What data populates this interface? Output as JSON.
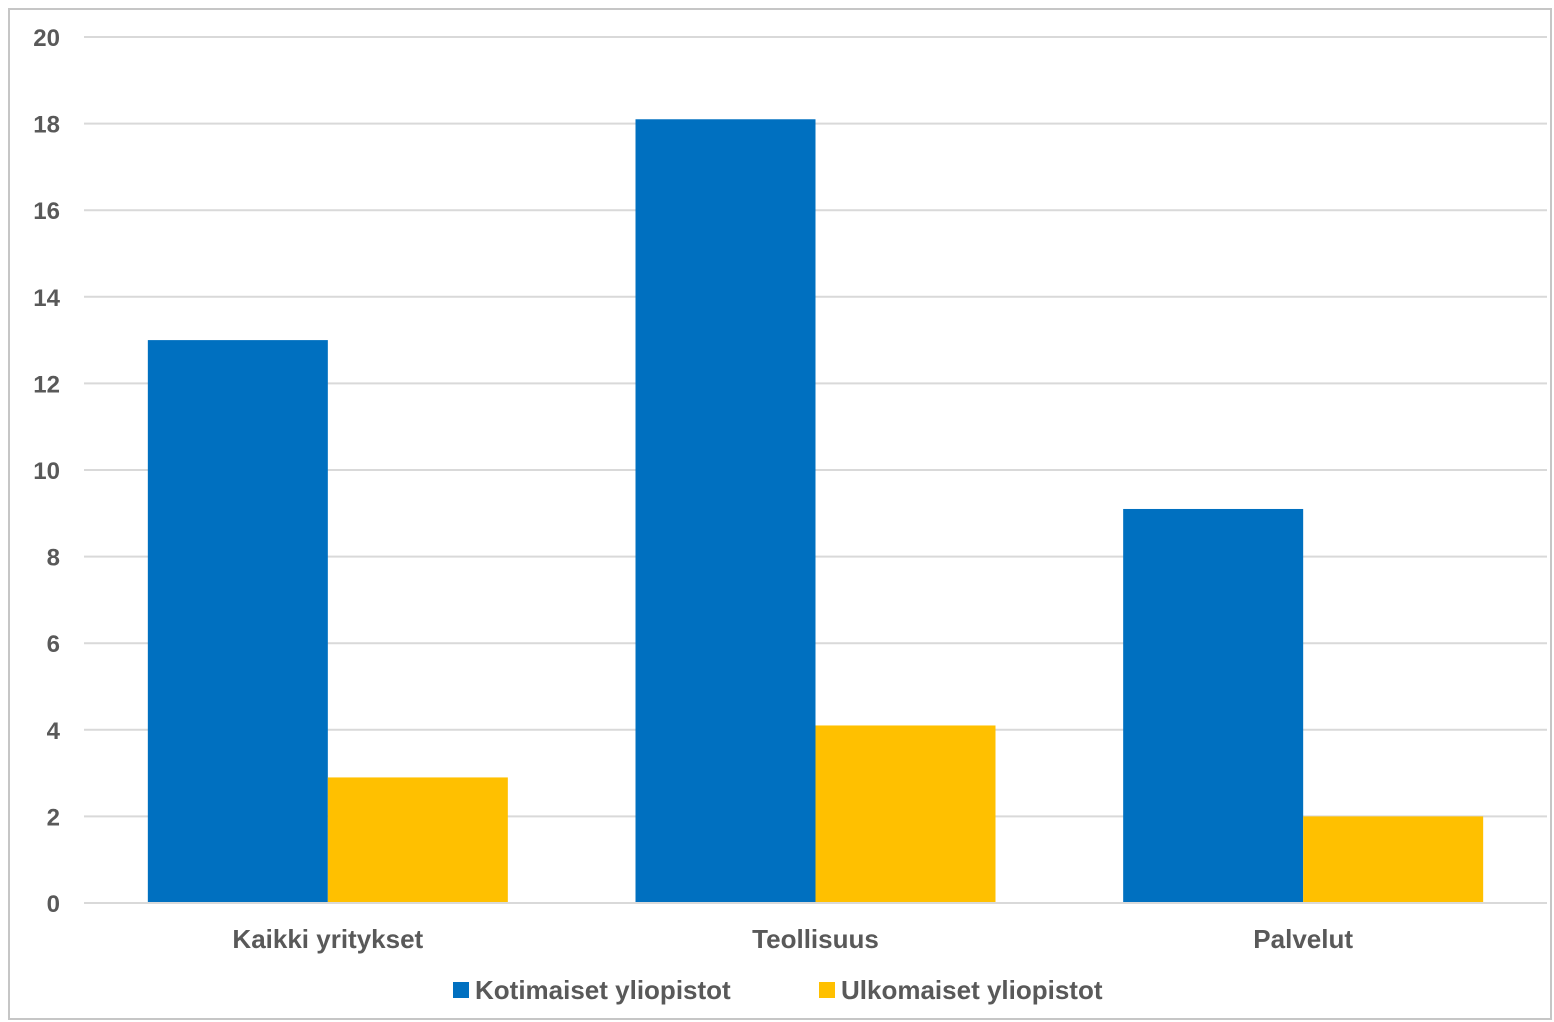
{
  "chart_data": {
    "type": "bar",
    "categories": [
      "Kaikki yritykset",
      "Teollisuus",
      "Palvelut"
    ],
    "series": [
      {
        "name": "Kotimaiset yliopistot",
        "values": [
          13.0,
          18.1,
          9.1
        ],
        "color": "#0070C0"
      },
      {
        "name": "Ulkomaiset yliopistot",
        "values": [
          2.9,
          4.1,
          2.0
        ],
        "color": "#FFC000"
      }
    ],
    "ylim": [
      0,
      20
    ],
    "yticks": [
      "0",
      "2",
      "4",
      "6",
      "8",
      "10",
      "12",
      "14",
      "16",
      "18",
      "20"
    ],
    "grid": true,
    "legend": "bottom-center",
    "gridColor": "#d9d9d9",
    "textColor": "#595959"
  }
}
